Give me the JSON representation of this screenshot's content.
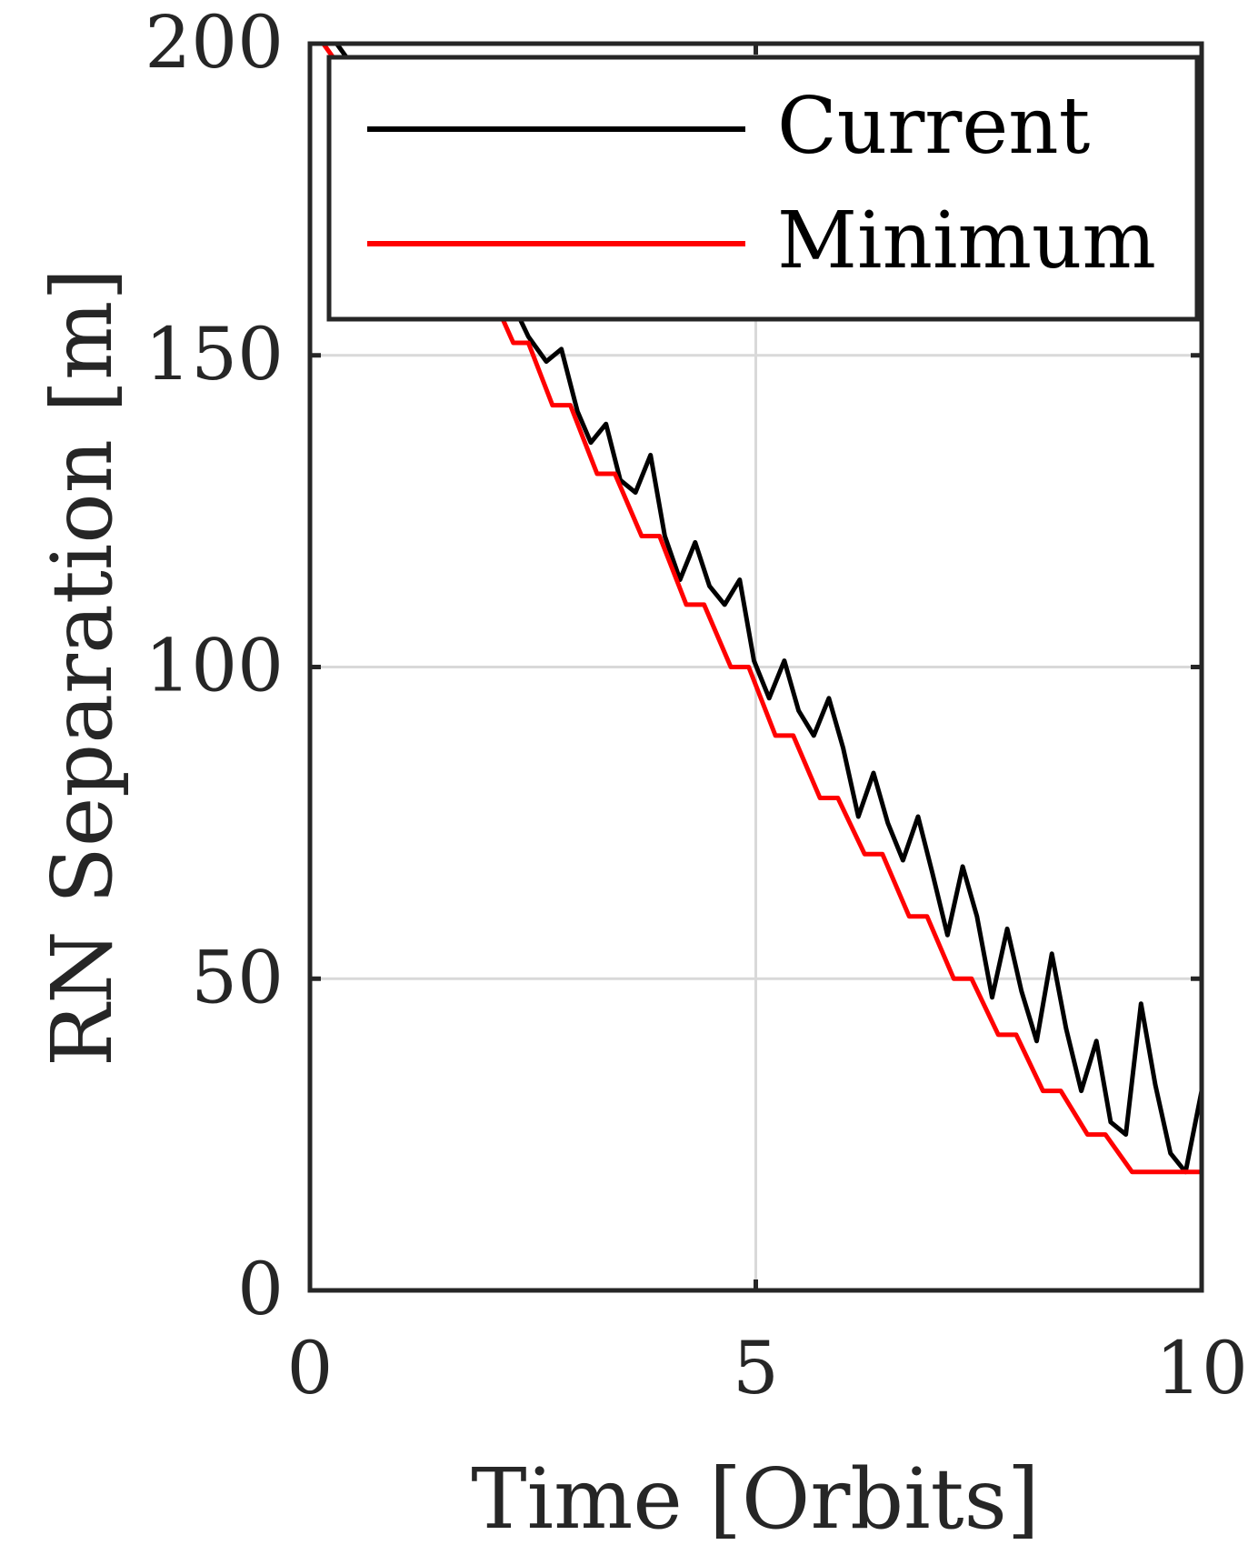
{
  "chart_data": {
    "type": "line",
    "xlabel": "Time [Orbits]",
    "ylabel": "RN Separation [m]",
    "xlim": [
      0,
      10
    ],
    "ylim": [
      0,
      200
    ],
    "xticks": [
      "0",
      "5",
      "10"
    ],
    "yticks": [
      "0",
      "50",
      "100",
      "150",
      "200"
    ],
    "grid": true,
    "legend_position": "top-right",
    "series": [
      {
        "name": "Current",
        "color": "#000000",
        "x": [
          0.0,
          0.1,
          0.3,
          0.5,
          0.8,
          1.0,
          1.3,
          1.5,
          1.8,
          2.0,
          2.25,
          2.45,
          2.65,
          2.82,
          3.0,
          3.15,
          3.32,
          3.48,
          3.65,
          3.82,
          3.98,
          4.15,
          4.32,
          4.48,
          4.65,
          4.82,
          4.98,
          5.15,
          5.32,
          5.48,
          5.65,
          5.82,
          5.98,
          6.15,
          6.32,
          6.48,
          6.65,
          6.82,
          6.98,
          7.15,
          7.32,
          7.48,
          7.65,
          7.82,
          7.98,
          8.15,
          8.32,
          8.48,
          8.65,
          8.82,
          8.98,
          9.15,
          9.32,
          9.48,
          9.65,
          9.82,
          10.0
        ],
        "y": [
          200,
          200,
          200,
          196,
          191,
          186,
          181,
          176,
          171,
          166,
          159,
          153,
          149,
          151,
          141,
          136,
          139,
          130,
          128,
          134,
          121,
          114,
          120,
          113,
          110,
          114,
          101,
          95,
          101,
          93,
          89,
          95,
          87,
          76,
          83,
          75,
          69,
          76,
          67,
          57,
          68,
          60,
          47,
          58,
          48,
          40,
          54,
          42,
          32,
          40,
          27,
          25,
          46,
          33,
          22,
          19,
          32
        ]
      },
      {
        "name": "Minimum",
        "color": "#ff0000",
        "x": [
          0.0,
          0.15,
          0.35,
          0.6,
          0.8,
          1.0,
          1.3,
          1.5,
          1.8,
          2.0,
          2.28,
          2.45,
          2.72,
          2.92,
          3.22,
          3.42,
          3.72,
          3.92,
          4.22,
          4.42,
          4.72,
          4.92,
          5.22,
          5.42,
          5.72,
          5.92,
          6.22,
          6.42,
          6.72,
          6.92,
          7.22,
          7.42,
          7.72,
          7.92,
          8.22,
          8.42,
          8.72,
          8.92,
          9.22,
          9.42,
          9.72,
          10.0
        ],
        "y": [
          200,
          200,
          196,
          191,
          186,
          181,
          176,
          171,
          166,
          161,
          152,
          152,
          142,
          142,
          131,
          131,
          121,
          121,
          110,
          110,
          100,
          100,
          89,
          89,
          79,
          79,
          70,
          70,
          60,
          60,
          50,
          50,
          41,
          41,
          32,
          32,
          25,
          25,
          19,
          19,
          19,
          19
        ]
      }
    ]
  }
}
